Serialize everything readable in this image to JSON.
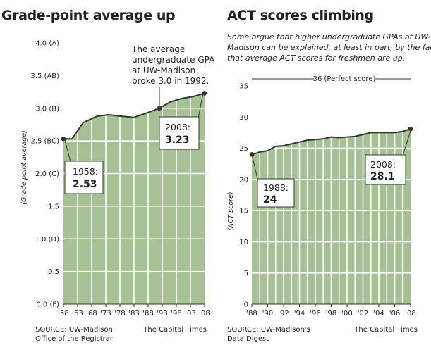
{
  "chart_data": [
    {
      "type": "area",
      "title": "Grade-point average up",
      "ylabel": "(Grade point average)",
      "xlabel": "",
      "ylim": [
        0,
        4
      ],
      "ytick_labels": [
        "0.0 (F)",
        "0.5",
        "1.0 (D)",
        "1.5",
        "2.0 (C)",
        "2.5 (BC)",
        "3.0 (B)",
        "3.5 (AB)",
        "4.0 (A)"
      ],
      "ytick_values": [
        0,
        0.5,
        1,
        1.5,
        2,
        2.5,
        3,
        3.5,
        4
      ],
      "xtick_labels": [
        "'58",
        "'63",
        "'68",
        "'73",
        "'78",
        "'83",
        "'88",
        "'93",
        "'98",
        "'03",
        "'08"
      ],
      "xtick_values": [
        1958,
        1963,
        1968,
        1973,
        1978,
        1983,
        1988,
        1993,
        1998,
        2003,
        2008
      ],
      "x": [
        1958,
        1961,
        1965,
        1970,
        1974,
        1978,
        1983,
        1987,
        1992,
        1996,
        2000,
        2004,
        2008
      ],
      "values": [
        2.53,
        2.53,
        2.78,
        2.88,
        2.9,
        2.88,
        2.86,
        2.92,
        3.0,
        3.1,
        3.15,
        3.18,
        3.23
      ],
      "grid": true,
      "annotations": [
        {
          "text_lines": [
            "The average",
            "undergraduate GPA",
            "at UW-Madison",
            "broke 3.0 in 1992."
          ]
        },
        {
          "year": "1958:",
          "value": "2.53"
        },
        {
          "year": "2008:",
          "value": "3.23"
        }
      ],
      "source_lines": [
        "SOURCE: UW-Madison,",
        "Office of the Registrar"
      ],
      "credit": "The Capital Times"
    },
    {
      "type": "area",
      "title": "ACT scores climbing",
      "subtitle_lines": [
        "Some argue that higher undergraduate GPAs at UW-",
        "Madison can be explained, at least in part, by the fact",
        "that average ACT scores for freshmen are up."
      ],
      "ylabel": "(ACT score)",
      "xlabel": "",
      "ylim": [
        0,
        36
      ],
      "ytick_labels": [
        "35",
        "30",
        "25",
        "20",
        "15",
        "10",
        "5",
        "0"
      ],
      "ytick_values": [
        35,
        30,
        25,
        20,
        15,
        10,
        5,
        0
      ],
      "xtick_labels": [
        "'88",
        "'90",
        "'92",
        "'94",
        "'96",
        "'98",
        "'00",
        "'02",
        "'04",
        "'06",
        "'08"
      ],
      "xtick_values": [
        1988,
        1990,
        1992,
        1994,
        1996,
        1998,
        2000,
        2002,
        2004,
        2006,
        2008
      ],
      "x": [
        1988,
        1989,
        1990,
        1991,
        1992,
        1993,
        1994,
        1995,
        1996,
        1997,
        1998,
        1999,
        2000,
        2001,
        2002,
        2003,
        2004,
        2005,
        2006,
        2007,
        2008
      ],
      "values": [
        24.0,
        24.4,
        24.6,
        25.3,
        25.4,
        25.7,
        26.0,
        26.3,
        26.4,
        26.5,
        26.8,
        26.7,
        26.8,
        26.9,
        27.2,
        27.5,
        27.5,
        27.5,
        27.5,
        27.7,
        28.1
      ],
      "grid": true,
      "reference_line": {
        "value": 36,
        "label": "36 (Perfect score)"
      },
      "annotations": [
        {
          "year": "1988:",
          "value": "24"
        },
        {
          "year": "2008:",
          "value": "28.1"
        }
      ],
      "source_lines": [
        "SOURCE: UW-Madison's",
        "Data Digest"
      ],
      "credit": "The Capital Times"
    }
  ],
  "colors": {
    "fill": "#a8c096",
    "line": "#2f3a2a",
    "grid": "#ffffff",
    "text": "#231f20"
  }
}
